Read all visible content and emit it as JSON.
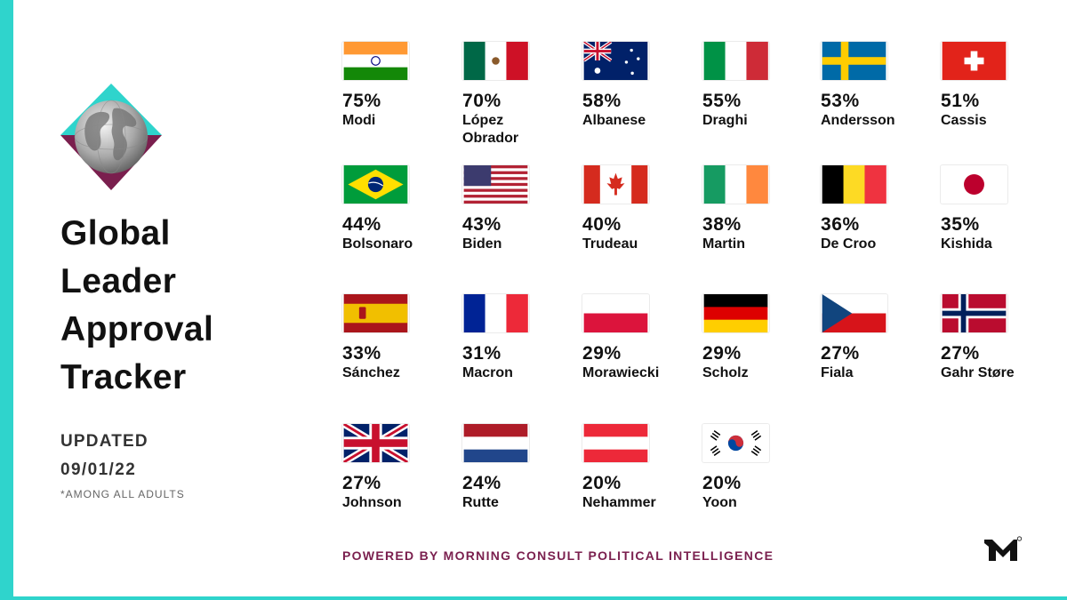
{
  "title_lines": [
    "Global",
    "Leader",
    "Approval",
    "Tracker"
  ],
  "updated_label": "UPDATED",
  "updated_date": "09/01/22",
  "footnote": "*AMONG ALL ADULTS",
  "powered_by": "POWERED BY MORNING CONSULT POLITICAL INTELLIGENCE",
  "colors": {
    "accent": "#2fd4cc",
    "maroon": "#7a1f4e",
    "text": "#111111"
  },
  "chart_data": {
    "type": "table",
    "leaders": [
      {
        "name": "Modi",
        "approval": "75%",
        "flag": "india"
      },
      {
        "name": "López\nObrador",
        "approval": "70%",
        "flag": "mexico"
      },
      {
        "name": "Albanese",
        "approval": "58%",
        "flag": "australia"
      },
      {
        "name": "Draghi",
        "approval": "55%",
        "flag": "italy"
      },
      {
        "name": "Andersson",
        "approval": "53%",
        "flag": "sweden"
      },
      {
        "name": "Cassis",
        "approval": "51%",
        "flag": "switzerland"
      },
      {
        "name": "Bolsonaro",
        "approval": "44%",
        "flag": "brazil"
      },
      {
        "name": "Biden",
        "approval": "43%",
        "flag": "usa"
      },
      {
        "name": "Trudeau",
        "approval": "40%",
        "flag": "canada"
      },
      {
        "name": "Martin",
        "approval": "38%",
        "flag": "ireland"
      },
      {
        "name": "De Croo",
        "approval": "36%",
        "flag": "belgium"
      },
      {
        "name": "Kishida",
        "approval": "35%",
        "flag": "japan"
      },
      {
        "name": "Sánchez",
        "approval": "33%",
        "flag": "spain"
      },
      {
        "name": "Macron",
        "approval": "31%",
        "flag": "france"
      },
      {
        "name": "Morawiecki",
        "approval": "29%",
        "flag": "poland"
      },
      {
        "name": "Scholz",
        "approval": "29%",
        "flag": "germany"
      },
      {
        "name": "Fiala",
        "approval": "27%",
        "flag": "czechia"
      },
      {
        "name": "Gahr Støre",
        "approval": "27%",
        "flag": "norway"
      },
      {
        "name": "Johnson",
        "approval": "27%",
        "flag": "uk"
      },
      {
        "name": "Rutte",
        "approval": "24%",
        "flag": "netherlands"
      },
      {
        "name": "Nehammer",
        "approval": "20%",
        "flag": "austria"
      },
      {
        "name": "Yoon",
        "approval": "20%",
        "flag": "south-korea"
      }
    ]
  }
}
